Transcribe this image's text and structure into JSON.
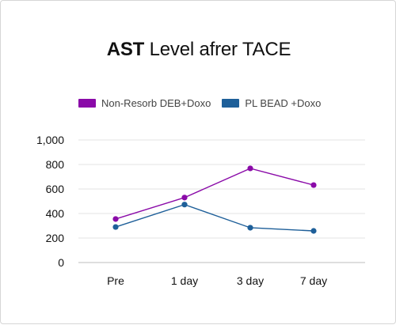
{
  "chart_data": {
    "type": "line",
    "title_bold": "AST",
    "title_rest": " Level afrer TACE",
    "categories": [
      "Pre",
      "1 day",
      "3 day",
      "7 day"
    ],
    "series": [
      {
        "name": "Non-Resorb DEB+Doxo",
        "color": "#8a0aa8",
        "values": [
          355,
          530,
          768,
          632
        ]
      },
      {
        "name": "PL BEAD +Doxo",
        "color": "#1e5f99",
        "values": [
          290,
          473,
          284,
          258
        ]
      }
    ],
    "ylim": [
      0,
      1000
    ],
    "yticks": [
      "0",
      "200",
      "400",
      "600",
      "800",
      "1,000"
    ],
    "ytick_values": [
      0,
      200,
      400,
      600,
      800,
      1000
    ],
    "grid": true,
    "legend_position": "top-left"
  }
}
